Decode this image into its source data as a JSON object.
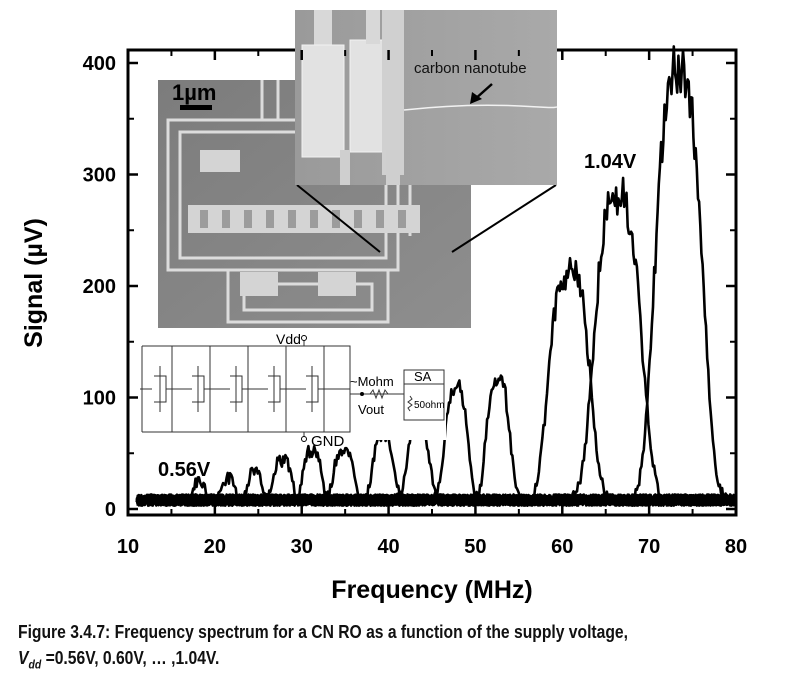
{
  "chart_data": {
    "type": "line",
    "xlabel": "Frequency (MHz)",
    "ylabel": "Signal (µV)",
    "xlim": [
      10,
      80
    ],
    "ylim": [
      0,
      400
    ],
    "x_ticks": [
      "10",
      "20",
      "30",
      "40",
      "50",
      "60",
      "70",
      "80"
    ],
    "y_ticks": [
      "0",
      "100",
      "200",
      "300",
      "400"
    ],
    "grid": false,
    "annotations": {
      "low_voltage": "0.56V",
      "high_voltage": "1.04V",
      "sem_scale": "1µm",
      "nanotube": "carbon nanotube",
      "vdd": "Vdd",
      "gnd": "GND",
      "mohm": "~Mohm",
      "vout": "Vout",
      "sa": "SA",
      "ohm": "50ohm"
    },
    "series": [
      {
        "peak_x": 18.2,
        "peak_y": 18,
        "width": 0.8
      },
      {
        "peak_x": 21.5,
        "peak_y": 20,
        "width": 0.9
      },
      {
        "peak_x": 24.6,
        "peak_y": 26,
        "width": 1.0
      },
      {
        "peak_x": 27.8,
        "peak_y": 36,
        "width": 1.2
      },
      {
        "peak_x": 31.2,
        "peak_y": 45,
        "width": 1.2
      },
      {
        "peak_x": 34.8,
        "peak_y": 45,
        "width": 1.3
      },
      {
        "peak_x": 39.4,
        "peak_y": 60,
        "width": 1.4
      },
      {
        "peak_x": 43.4,
        "peak_y": 70,
        "width": 1.5
      },
      {
        "peak_x": 47.8,
        "peak_y": 100,
        "width": 1.6
      },
      {
        "peak_x": 52.6,
        "peak_y": 108,
        "width": 1.6
      },
      {
        "peak_x": 60.8,
        "peak_y": 205,
        "width": 2.8
      },
      {
        "peak_x": 66.4,
        "peak_y": 270,
        "width": 3.2
      },
      {
        "peak_x": 73.4,
        "peak_y": 385,
        "width": 3.2
      }
    ]
  },
  "caption": {
    "line1": "Figure 3.4.7: Frequency spectrum for a CN RO as a function of the supply voltage,",
    "v_main": "V",
    "v_sub": "dd",
    "line2_rest": " =0.56V, 0.60V, … ,1.04V."
  }
}
